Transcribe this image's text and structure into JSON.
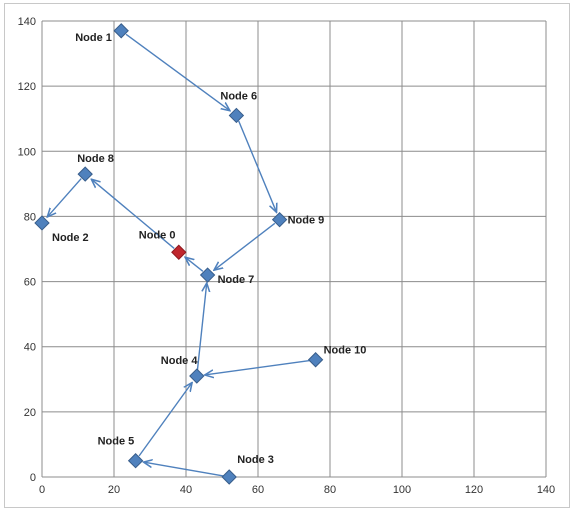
{
  "chart_data": {
    "type": "scatter",
    "title": "",
    "xlabel": "",
    "ylabel": "",
    "xlim": [
      0,
      140
    ],
    "ylim": [
      0,
      140
    ],
    "xticks": [
      0,
      20,
      40,
      60,
      80,
      100,
      120,
      140
    ],
    "yticks": [
      0,
      20,
      40,
      60,
      80,
      100,
      120,
      140
    ],
    "grid": true,
    "legend": "none",
    "colors": {
      "node": "#4f81bd",
      "highlight": "#c0262d",
      "edge": "#4f81bd",
      "grid": "#8c8c8c"
    },
    "points": [
      {
        "label": "Node 0",
        "x": 38,
        "y": 69,
        "highlight": true
      },
      {
        "label": "Node 1",
        "x": 22,
        "y": 137
      },
      {
        "label": "Node 2",
        "x": 0,
        "y": 78
      },
      {
        "label": "Node 3",
        "x": 52,
        "y": 0
      },
      {
        "label": "Node 4",
        "x": 43,
        "y": 31
      },
      {
        "label": "Node 5",
        "x": 26,
        "y": 5
      },
      {
        "label": "Node 6",
        "x": 54,
        "y": 111
      },
      {
        "label": "Node 7",
        "x": 46,
        "y": 62
      },
      {
        "label": "Node 8",
        "x": 12,
        "y": 93
      },
      {
        "label": "Node 9",
        "x": 66,
        "y": 79
      },
      {
        "label": "Node 10",
        "x": 76,
        "y": 36
      }
    ],
    "edges": [
      {
        "from": "Node 1",
        "to": "Node 6"
      },
      {
        "from": "Node 6",
        "to": "Node 9"
      },
      {
        "from": "Node 9",
        "to": "Node 7"
      },
      {
        "from": "Node 7",
        "to": "Node 0"
      },
      {
        "from": "Node 0",
        "to": "Node 8"
      },
      {
        "from": "Node 8",
        "to": "Node 2"
      },
      {
        "from": "Node 10",
        "to": "Node 4"
      },
      {
        "from": "Node 4",
        "to": "Node 7"
      },
      {
        "from": "Node 5",
        "to": "Node 4"
      },
      {
        "from": "Node 3",
        "to": "Node 5"
      }
    ]
  }
}
